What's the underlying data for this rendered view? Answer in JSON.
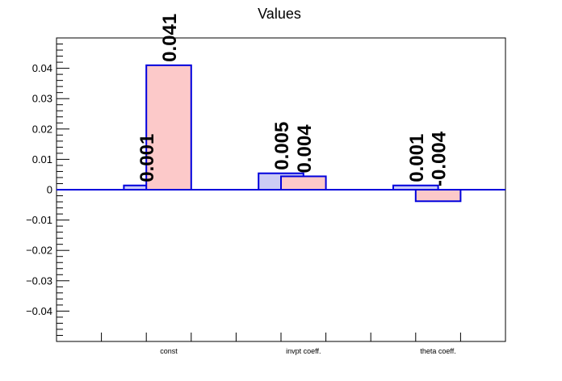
{
  "chart_data": {
    "type": "bar",
    "title": "Values",
    "xlabel": "",
    "ylabel": "",
    "categories": [
      "const",
      "invpt coeff.",
      "theta coeff."
    ],
    "series": [
      {
        "values": [
          0.0014,
          0.0054,
          0.0014
        ],
        "labels": [
          "0.001",
          "0.005",
          "0.001"
        ],
        "fill": "#ccccf4",
        "stroke": "#0000dd"
      },
      {
        "values": [
          0.041,
          0.0044,
          -0.0038
        ],
        "labels": [
          "0.041",
          "0.004",
          "-0.004"
        ],
        "fill": "#fcc9c9",
        "stroke": "#0000dd"
      }
    ],
    "ylim": [
      -0.05,
      0.05
    ],
    "yticks": [
      -0.04,
      -0.03,
      -0.02,
      -0.01,
      0,
      0.01,
      0.02,
      0.03,
      0.04
    ],
    "ytick_labels": [
      "−0.04",
      "−0.03",
      "−0.02",
      "−0.01",
      "0",
      "0.01",
      "0.02",
      "0.03",
      "0.04"
    ],
    "grid": false,
    "legend": "none",
    "zero_line_color": "#0000dd"
  }
}
